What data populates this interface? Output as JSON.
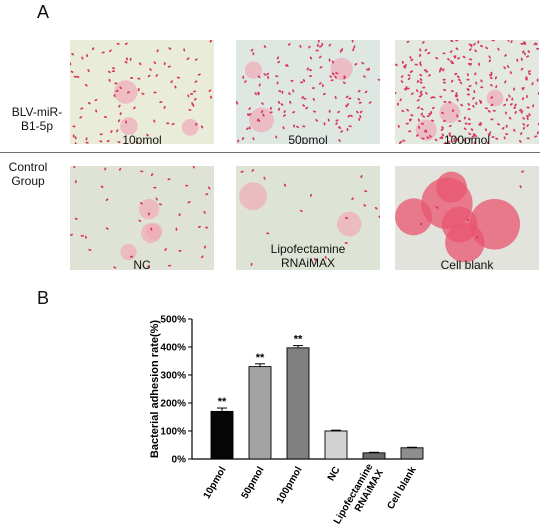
{
  "panel_a": {
    "letter": "A",
    "row1_label": "BLV-miR-\nB1-5p",
    "row2_label": "Control\nGroup",
    "images": [
      {
        "label": "10pmol",
        "density": "medium",
        "tint": "#e9ecd9"
      },
      {
        "label": "50pmol",
        "density": "medium-high",
        "tint": "#dfe7e2"
      },
      {
        "label": "100pmol",
        "density": "high",
        "tint": "#e3e8e0"
      },
      {
        "label": "NC",
        "density": "low",
        "tint": "#dfe3d6"
      },
      {
        "label": "Lipofectamine\nRNAiMAX",
        "density": "very-low",
        "tint": "#dde4d6"
      },
      {
        "label": "Cell blank",
        "density": "minimal",
        "tint": "#e2e3dc"
      }
    ]
  },
  "panel_b": {
    "letter": "B"
  },
  "chart_data": {
    "type": "bar",
    "title": "",
    "xlabel": "",
    "ylabel": "Bacterial adhesion rate(%)",
    "ylim": [
      0,
      500
    ],
    "yticks": [
      "0%",
      "100%",
      "200%",
      "300%",
      "400%",
      "500%"
    ],
    "categories": [
      "10pmol",
      "50pmol",
      "100pmol",
      "NC",
      "Lipofectamine RNAiMAX",
      "Cell blank"
    ],
    "values": [
      170,
      330,
      397,
      100,
      22,
      40
    ],
    "errors": [
      12,
      10,
      8,
      3,
      2,
      2
    ],
    "significance": [
      "**",
      "**",
      "**",
      "",
      "",
      ""
    ],
    "colors": [
      "#050505",
      "#a3a3a3",
      "#808080",
      "#d3d3d3",
      "#6b6b6b",
      "#8e8e8e"
    ],
    "grid": false
  }
}
